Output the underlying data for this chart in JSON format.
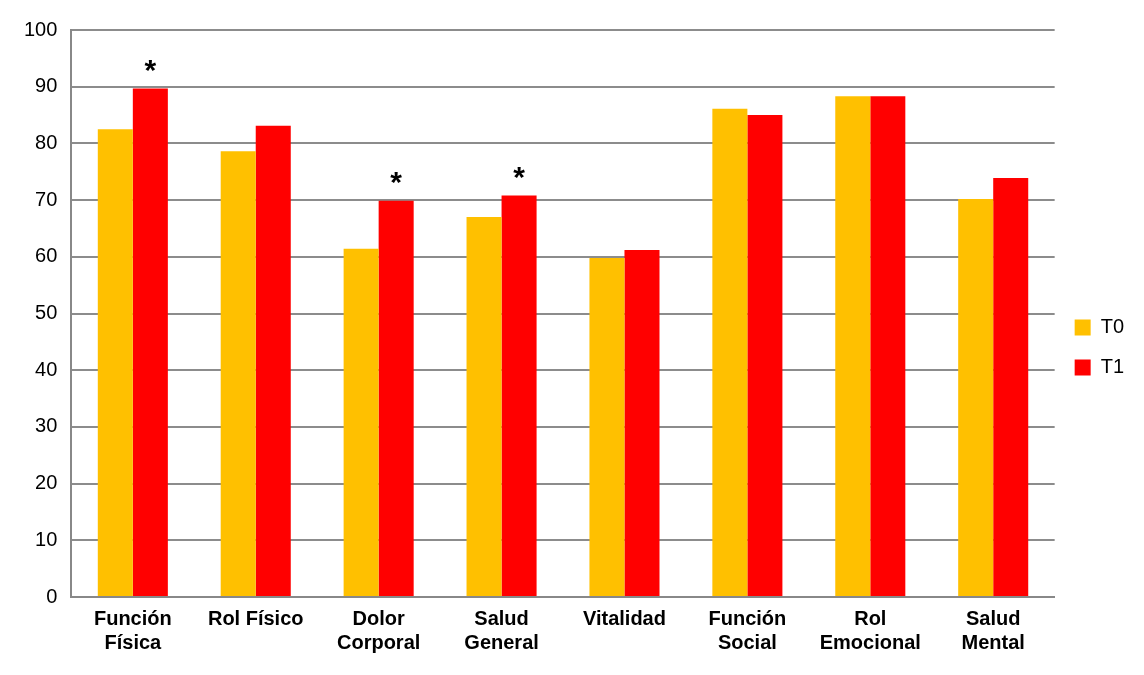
{
  "chart_data": {
    "type": "bar",
    "categories": [
      "Función Física",
      "Rol Físico",
      "Dolor Corporal",
      "Salud General",
      "Vitalidad",
      "Función Social",
      "Rol Emocional",
      "Salud Mental"
    ],
    "series": [
      {
        "name": "T0",
        "color": "#ffc000",
        "values": [
          82.5,
          78.6,
          61.4,
          67.0,
          59.8,
          86.1,
          88.3,
          70.2
        ]
      },
      {
        "name": "T1",
        "color": "#ff0000",
        "values": [
          89.7,
          83.1,
          69.9,
          70.8,
          61.2,
          85.0,
          88.3,
          73.9
        ]
      }
    ],
    "ylim": [
      0,
      100
    ],
    "yticks": [
      0,
      10,
      20,
      30,
      40,
      50,
      60,
      70,
      80,
      90,
      100
    ],
    "grid": "y",
    "legend": "right",
    "annotations": [
      {
        "text": "*",
        "x": "Función Física",
        "y": 89.7
      },
      {
        "text": "*",
        "x": "Dolor Corporal",
        "y": 69.9
      },
      {
        "text": "*",
        "x": "Salud General",
        "y": 70.8
      }
    ]
  }
}
